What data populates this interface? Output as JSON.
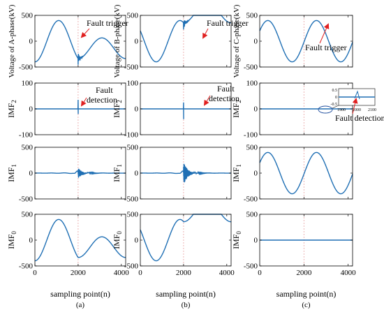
{
  "figure": {
    "line_color": "#1f6fb4",
    "ref_line_color": "#e8a0a0",
    "arrow_color": "#e02020",
    "x_label": "sampling point(n)",
    "x_ticks": [
      0,
      2000,
      4000
    ],
    "column_labels": [
      "(a)",
      "(b)",
      "(c)"
    ],
    "row_labels": [
      "Voltage of A-phase(kV)",
      "Voltage of B-phase(kV)",
      "Voltage of C-phase(kV)",
      "IMF2",
      "IMF1",
      "IMF0"
    ]
  },
  "annotations": {
    "fault_trigger": "Fault trigger",
    "fault_detection_line1": "Fault",
    "fault_detection_line2": "detection",
    "fault_detection_single": "Fault detection",
    "inset_x_ticks": [
      1900,
      2000,
      2100
    ],
    "inset_y_ticks": [
      0.5,
      0,
      -0.5
    ]
  },
  "chart_data": [
    {
      "type": "line",
      "panel": "a-voltage",
      "ylabel": "Voltage of A-phase(kV)",
      "xlim": [
        0,
        4200
      ],
      "ylim": [
        -500,
        500
      ],
      "yticks": [
        -500,
        0,
        500
      ],
      "fault_at": 2000,
      "signal": {
        "kind": "voltage",
        "amp": 400,
        "phase_deg": -90,
        "period": 2200,
        "fault_amp": 200,
        "burst": 120
      }
    },
    {
      "type": "line",
      "panel": "b-voltage",
      "ylabel": "Voltage of B-phase(kV)",
      "xlim": [
        0,
        4200
      ],
      "ylim": [
        -500,
        500
      ],
      "yticks": [
        -500,
        0,
        500
      ],
      "fault_at": 2000,
      "signal": {
        "kind": "voltage",
        "amp": 400,
        "phase_deg": 150,
        "period": 2200,
        "fault_amp": 200,
        "burst": 130
      }
    },
    {
      "type": "line",
      "panel": "c-voltage",
      "ylabel": "Voltage of C-phase(kV)",
      "xlim": [
        0,
        4200
      ],
      "ylim": [
        -500,
        500
      ],
      "yticks": [
        -500,
        0,
        500
      ],
      "fault_at": 2000,
      "signal": {
        "kind": "sine",
        "amp": 400,
        "phase_deg": 30,
        "period": 2200
      }
    },
    {
      "type": "line",
      "panel": "a-imf2",
      "ylabel": "IMF2",
      "xlim": [
        0,
        4200
      ],
      "ylim": [
        -100,
        100
      ],
      "yticks": [
        -100,
        0,
        100
      ],
      "fault_at": 2000,
      "signal": {
        "kind": "spike",
        "up": 35,
        "down": -20
      }
    },
    {
      "type": "line",
      "panel": "b-imf2",
      "ylabel": "IMF2",
      "xlim": [
        0,
        4200
      ],
      "ylim": [
        -100,
        100
      ],
      "yticks": [
        -100,
        0,
        100
      ],
      "fault_at": 2000,
      "signal": {
        "kind": "spike",
        "up": 25,
        "down": -40
      }
    },
    {
      "type": "line",
      "panel": "c-imf2",
      "ylabel": "IMF2",
      "xlim": [
        0,
        4200
      ],
      "ylim": [
        -100,
        100
      ],
      "yticks": [
        -100,
        0,
        100
      ],
      "fault_at": 2000,
      "signal": {
        "kind": "flat"
      }
    },
    {
      "type": "line",
      "panel": "a-imf1",
      "ylabel": "IMF1",
      "xlim": [
        0,
        4200
      ],
      "ylim": [
        -500,
        500
      ],
      "yticks": [
        -500,
        0,
        500
      ],
      "fault_at": 2000,
      "signal": {
        "kind": "burst",
        "amp": 110,
        "pre": 10
      }
    },
    {
      "type": "line",
      "panel": "b-imf1",
      "ylabel": "IMF1",
      "xlim": [
        0,
        4200
      ],
      "ylim": [
        -500,
        500
      ],
      "yticks": [
        -500,
        0,
        500
      ],
      "fault_at": 2000,
      "signal": {
        "kind": "burst",
        "amp": 240,
        "pre": 10
      }
    },
    {
      "type": "line",
      "panel": "c-imf1",
      "ylabel": "IMF1",
      "xlim": [
        0,
        4200
      ],
      "ylim": [
        -500,
        500
      ],
      "yticks": [
        -500,
        0,
        500
      ],
      "fault_at": 2000,
      "signal": {
        "kind": "sine",
        "amp": 400,
        "phase_deg": 30,
        "period": 2200
      }
    },
    {
      "type": "line",
      "panel": "a-imf0",
      "ylabel": "IMF0",
      "xlim": [
        0,
        4200
      ],
      "ylim": [
        -500,
        500
      ],
      "yticks": [
        -500,
        0,
        500
      ],
      "fault_at": 2000,
      "signal": {
        "kind": "voltage",
        "amp": 400,
        "phase_deg": -90,
        "period": 2200,
        "fault_amp": 200,
        "burst": 0
      }
    },
    {
      "type": "line",
      "panel": "b-imf0",
      "ylabel": "IMF0",
      "xlim": [
        0,
        4200
      ],
      "ylim": [
        -500,
        500
      ],
      "yticks": [
        -500,
        0,
        500
      ],
      "fault_at": 2000,
      "signal": {
        "kind": "voltage",
        "amp": 400,
        "phase_deg": 150,
        "period": 2200,
        "fault_amp": 200,
        "burst": 0
      }
    },
    {
      "type": "line",
      "panel": "c-imf0",
      "ylabel": "IMF0",
      "xlim": [
        0,
        4200
      ],
      "ylim": [
        -500,
        500
      ],
      "yticks": [
        -500,
        0,
        500
      ],
      "fault_at": 2000,
      "signal": {
        "kind": "flat"
      }
    }
  ]
}
